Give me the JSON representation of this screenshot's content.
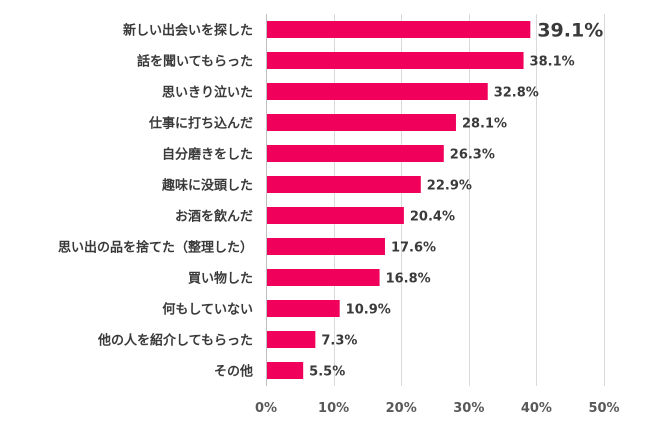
{
  "chart_data": {
    "type": "bar",
    "orientation": "horizontal",
    "categories": [
      "新しい出会いを探した",
      "話を聞いてもらった",
      "思いきり泣いた",
      "仕事に打ち込んだ",
      "自分磨きをした",
      "趣味に没頭した",
      "お酒を飲んだ",
      "思い出の品を捨てた（整理した）",
      "買い物した",
      "何もしていない",
      "他の人を紹介してもらった",
      "その他"
    ],
    "values": [
      39.1,
      38.1,
      32.8,
      28.1,
      26.3,
      22.9,
      20.4,
      17.6,
      16.8,
      10.9,
      7.3,
      5.5
    ],
    "value_labels": [
      "39.1%",
      "38.1%",
      "32.8%",
      "28.1%",
      "26.3%",
      "22.9%",
      "20.4%",
      "17.6%",
      "16.8%",
      "10.9%",
      "7.3%",
      "5.5%"
    ],
    "xticks": [
      0,
      10,
      20,
      30,
      40,
      50
    ],
    "xtick_labels": [
      "0%",
      "10%",
      "20%",
      "30%",
      "40%",
      "50%"
    ],
    "xlim": [
      0,
      50
    ],
    "title": "",
    "xlabel": "",
    "ylabel": "",
    "grid": true,
    "highlight_index": 0,
    "bar_color": "#f0005a",
    "highlight_label_color": "#e6005a",
    "label_color": "#3a3a3a",
    "grid_color": "#d9d9d9"
  }
}
